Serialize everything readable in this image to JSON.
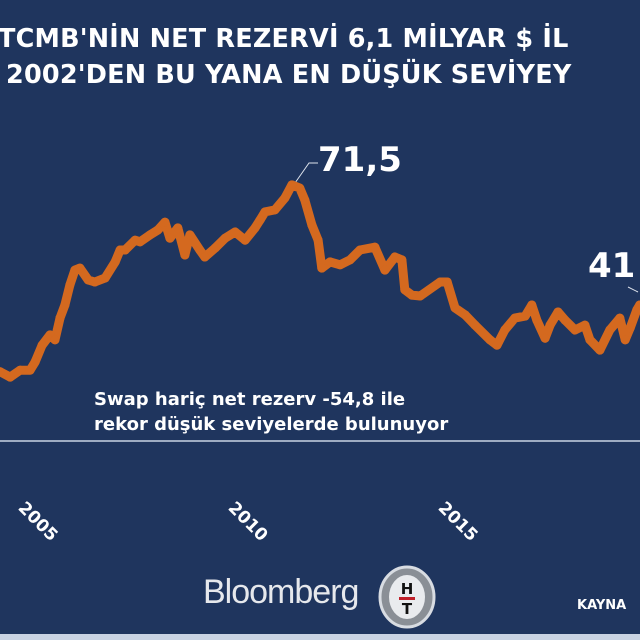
{
  "title": {
    "line1": "TCMB'NİN NET REZERVİ 6,1 MİLYAR $ İL",
    "line2": "2002'DEN BU YANA EN DÜŞÜK SEVİYEY"
  },
  "colors": {
    "background": "#1f355e",
    "series": "#d4691f",
    "text": "#ffffff"
  },
  "chart_data": {
    "type": "line",
    "title": "TCMB'NİN NET REZERVİ 6,1 MİLYAR $ İL… 2002'DEN BU YANA EN DÜŞÜK SEVİYEY…",
    "xlabel": "",
    "ylabel": "",
    "x_tick_labels": [
      "2005",
      "2010",
      "2015"
    ],
    "grid": false,
    "legend": "none",
    "annotations": [
      "71,5",
      "41",
      "Swap hariç net rezerv -54,8 ile",
      "rekor düşük seviyelerde bulunuyor"
    ],
    "x": [
      2003.8,
      2004.04,
      2004.28,
      2004.52,
      2004.64,
      2004.81,
      2005.0,
      2005.12,
      2005.24,
      2005.36,
      2005.48,
      2005.6,
      2005.72,
      2005.92,
      2006.08,
      2006.33,
      2006.57,
      2006.69,
      2006.81,
      2007.05,
      2007.17,
      2007.41,
      2007.6,
      2007.77,
      2007.89,
      2008.08,
      2008.25,
      2008.37,
      2008.61,
      2008.73,
      2008.98,
      2009.22,
      2009.46,
      2009.7,
      2009.94,
      2010.06,
      2010.18,
      2010.42,
      2010.66,
      2010.83,
      2011.02,
      2011.14,
      2011.31,
      2011.46,
      2011.55,
      2011.75,
      2011.99,
      2012.23,
      2012.47,
      2012.83,
      2013.07,
      2013.31,
      2013.48,
      2013.55,
      2013.72,
      2013.92,
      2014.4,
      2014.57,
      2014.76,
      2015.0,
      2015.24,
      2015.6,
      2015.77,
      2015.96,
      2016.2,
      2016.45,
      2016.61,
      2016.73,
      2016.93,
      2017.05,
      2017.24,
      2017.41,
      2017.65,
      2017.89,
      2018.01,
      2018.25,
      2018.49,
      2018.73,
      2018.86,
      2018.98,
      2019.14,
      2019.21
    ],
    "values": [
      25.9,
      24.6,
      26.3,
      26.3,
      28.3,
      32.4,
      34.9,
      33.7,
      39.0,
      42.2,
      47.1,
      50.7,
      51.2,
      48.3,
      47.8,
      48.8,
      52.7,
      55.6,
      55.6,
      58.0,
      57.6,
      59.3,
      60.5,
      62.4,
      58.5,
      61.0,
      54.4,
      59.3,
      55.6,
      53.9,
      56.1,
      58.5,
      60.0,
      58.0,
      61.0,
      62.9,
      64.9,
      65.4,
      68.3,
      71.5,
      70.7,
      67.8,
      61.7,
      58.0,
      51.2,
      52.7,
      52.0,
      53.2,
      55.6,
      56.3,
      50.7,
      53.9,
      53.2,
      45.9,
      44.6,
      44.4,
      47.8,
      47.8,
      41.5,
      39.8,
      37.3,
      33.7,
      32.4,
      36.1,
      39.0,
      39.5,
      42.2,
      38.5,
      34.1,
      37.3,
      40.5,
      38.5,
      36.1,
      37.3,
      33.7,
      31.2,
      36.1,
      39.0,
      33.7,
      36.6,
      41.0,
      42.2
    ]
  },
  "footer": {
    "brand": "Bloomberg",
    "source_label": "KAYNA"
  }
}
